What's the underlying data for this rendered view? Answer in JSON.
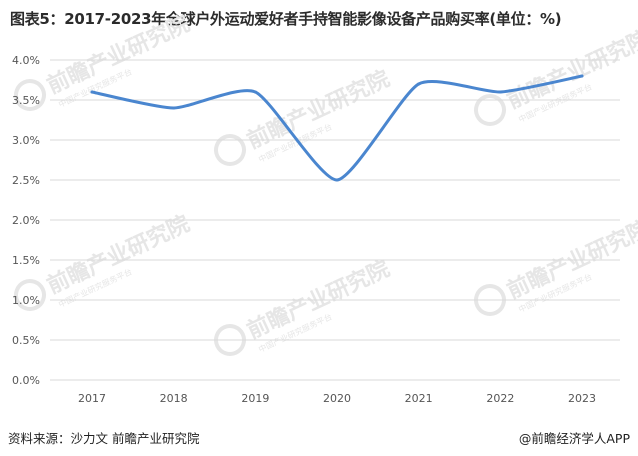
{
  "title": "图表5：2017-2023年全球户外运动爱好者手持智能影像设备产品购买率(单位：%)",
  "source": "资料来源：沙力文 前瞻产业研究院",
  "credit": "@前瞻经济学人APP",
  "watermark": {
    "text": "前瞻产业研究院",
    "sub": "中国产业研究服务平台"
  },
  "colors": {
    "line": "#4a86cf",
    "grid": "#d9d9d9",
    "axis_text": "#555555",
    "watermark": "#e6e6e6"
  },
  "chart_data": {
    "type": "line",
    "categories": [
      "2017",
      "2018",
      "2019",
      "2020",
      "2021",
      "2022",
      "2023"
    ],
    "values": [
      3.6,
      3.4,
      3.6,
      2.5,
      3.7,
      3.6,
      3.8
    ],
    "y_ticks": [
      "0.0%",
      "0.5%",
      "1.0%",
      "1.5%",
      "2.0%",
      "2.5%",
      "3.0%",
      "3.5%",
      "4.0%"
    ],
    "ylim": [
      0,
      4.0
    ],
    "y_unit": "%",
    "grid": true,
    "smooth": true
  }
}
